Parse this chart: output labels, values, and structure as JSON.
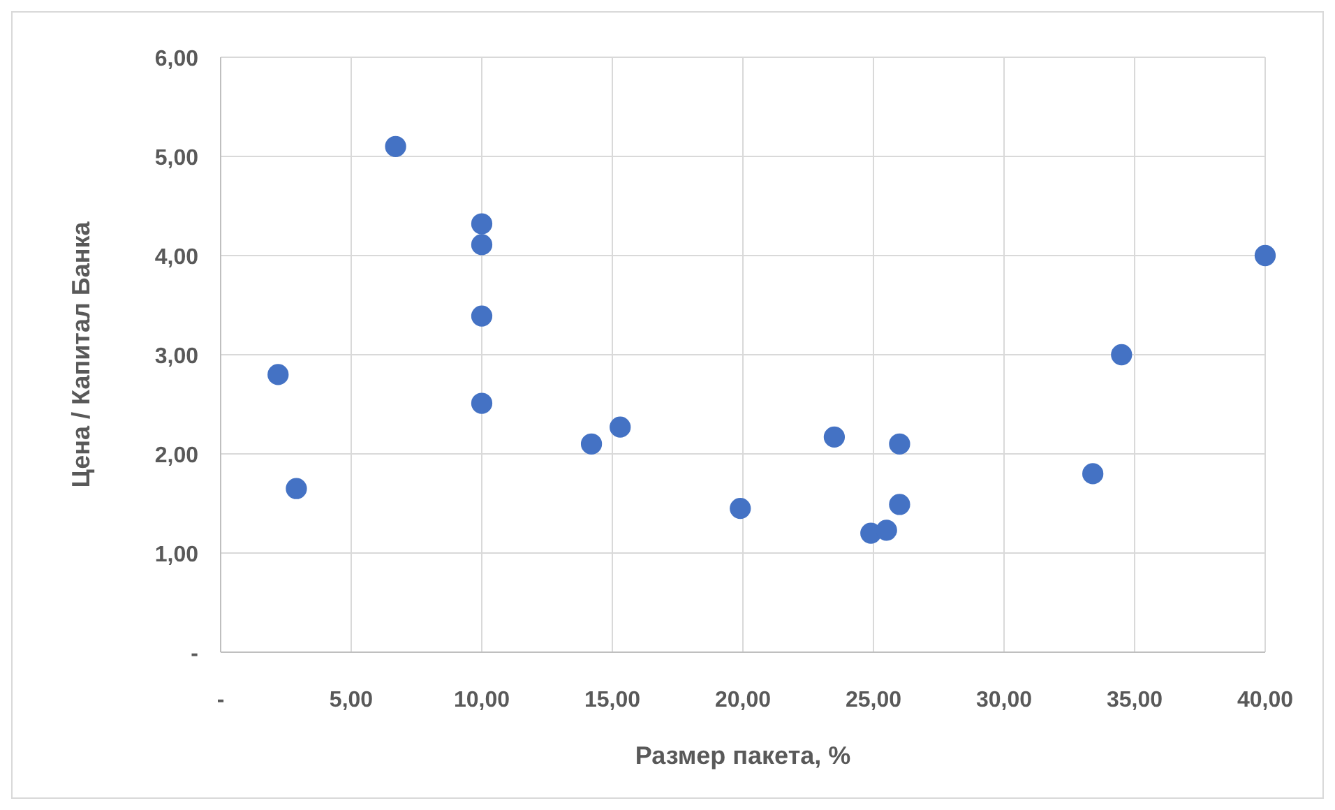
{
  "chart_data": {
    "type": "scatter",
    "xlabel": "Размер пакета, %",
    "ylabel": "Цена / Капитал Банка",
    "x": [
      6.7,
      10,
      10,
      10,
      10,
      2.2,
      2.9,
      14.2,
      15.3,
      19.9,
      23.5,
      24.9,
      25.5,
      26,
      26,
      33.4,
      34.5,
      40
    ],
    "series": [
      {
        "color": "#4472c4",
        "values": [
          5.1,
          4.32,
          4.11,
          3.39,
          2.51,
          2.8,
          1.65,
          2.1,
          2.27,
          1.45,
          2.17,
          1.2,
          1.23,
          2.1,
          1.49,
          1.8,
          3.0,
          4.0
        ]
      }
    ],
    "xlim": [
      0,
      40
    ],
    "ylim": [
      0,
      6
    ],
    "xticks": [
      {
        "value": 0,
        "label": "-"
      },
      {
        "value": 5,
        "label": "5,00"
      },
      {
        "value": 10,
        "label": "10,00"
      },
      {
        "value": 15,
        "label": "15,00"
      },
      {
        "value": 20,
        "label": "20,00"
      },
      {
        "value": 25,
        "label": "25,00"
      },
      {
        "value": 30,
        "label": "30,00"
      },
      {
        "value": 35,
        "label": "35,00"
      },
      {
        "value": 40,
        "label": "40,00"
      }
    ],
    "yticks": [
      {
        "value": 0,
        "label": "-"
      },
      {
        "value": 1,
        "label": "1,00"
      },
      {
        "value": 2,
        "label": "2,00"
      },
      {
        "value": 3,
        "label": "3,00"
      },
      {
        "value": 4,
        "label": "4,00"
      },
      {
        "value": 5,
        "label": "5,00"
      },
      {
        "value": 6,
        "label": "6,00"
      }
    ],
    "grid": true,
    "marker": "circle"
  }
}
